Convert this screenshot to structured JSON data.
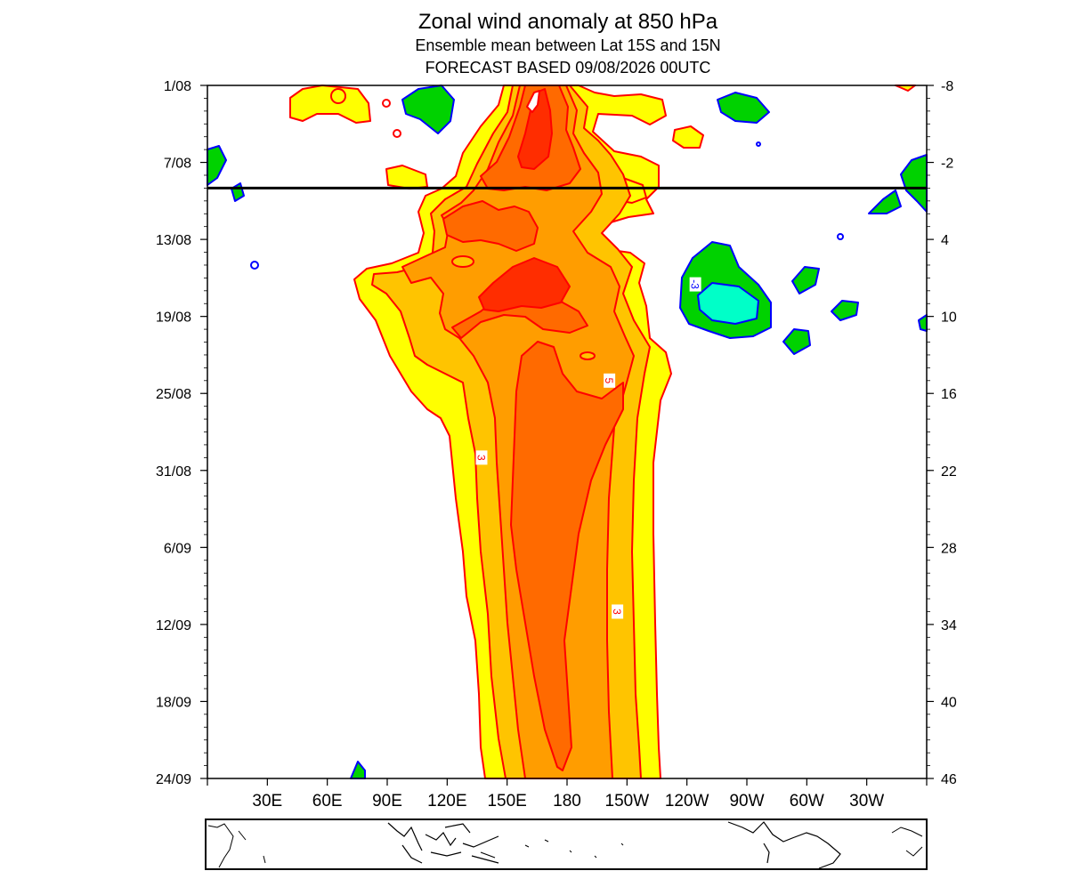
{
  "chart_data": {
    "type": "heatmap",
    "title": "Zonal wind anomaly at 850 hPa",
    "subtitle": "Ensemble mean between  Lat 15S and 15N",
    "subtitle2": "FORECAST  BASED 09/08/2026 00UTC",
    "x_ticks": [
      "30E",
      "60E",
      "90E",
      "120E",
      "150E",
      "180",
      "150W",
      "120W",
      "90W",
      "60W",
      "30W"
    ],
    "x_tick_values": [
      30,
      60,
      90,
      120,
      150,
      180,
      210,
      240,
      270,
      300,
      330
    ],
    "xlim": [
      0,
      360
    ],
    "y_left_ticks": [
      "1/08",
      "7/08",
      "13/08",
      "19/08",
      "25/08",
      "31/08",
      "6/09",
      "12/09",
      "18/09",
      "24/09"
    ],
    "y_right_ticks": [
      "-8",
      "-2",
      "4",
      "10",
      "16",
      "22",
      "28",
      "34",
      "40",
      "46"
    ],
    "y_right_values": [
      -8,
      -2,
      4,
      10,
      16,
      22,
      28,
      34,
      40,
      46
    ],
    "ylim": [
      -8,
      46
    ],
    "forecast_start_line": 0,
    "contour_labels": [
      {
        "text": "3",
        "lon": 137,
        "day": 21
      },
      {
        "text": "5",
        "lon": 201,
        "day": 15
      },
      {
        "text": "3",
        "lon": 205,
        "day": 33
      },
      {
        "text": "-3",
        "lon": 244,
        "day": 7.5
      }
    ],
    "colors": {
      "pos_1": "#ffff00",
      "pos_2": "#ffc400",
      "pos_3": "#ff9d00",
      "pos_4": "#ff6a00",
      "pos_5": "#ff2d00",
      "neg_1": "#00d200",
      "neg_2": "#00ffc8",
      "pos_line": "#ff0000",
      "neg_line": "#0000ff"
    }
  }
}
